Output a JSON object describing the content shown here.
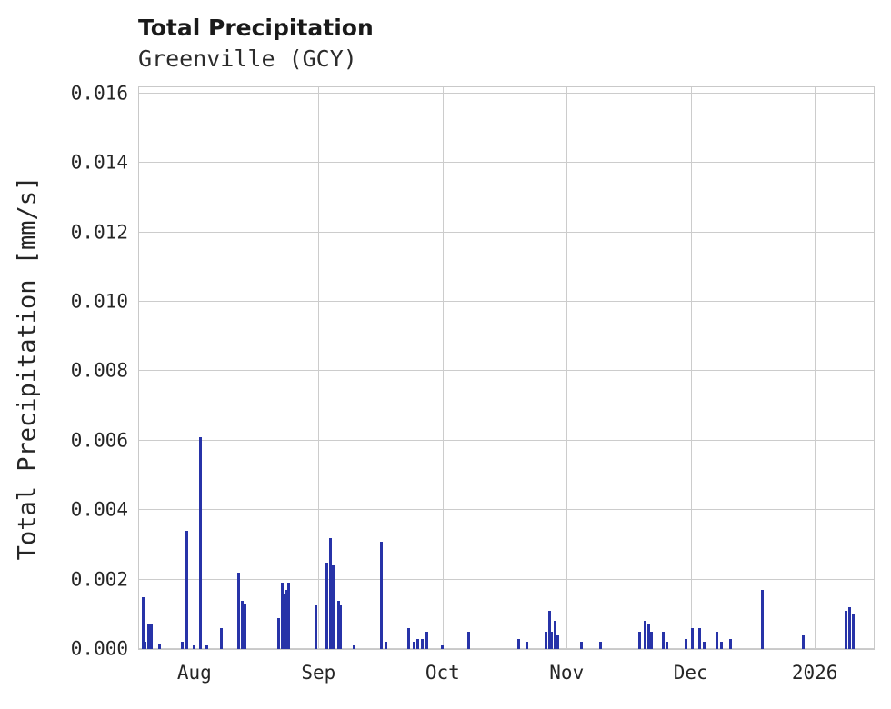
{
  "colors": {
    "bar": "#2733a8",
    "grid": "#cccccc",
    "border": "#c9c9c9",
    "text": "#262626"
  },
  "chart_data": {
    "type": "bar",
    "title": "Total Precipitation",
    "subtitle": "Greenville (GCY)",
    "xlabel": "",
    "ylabel": "Total Precipitation [mm/s]",
    "grid": true,
    "legend": false,
    "ylim": [
      0,
      0.01618
    ],
    "xlim": [
      -0.446,
      5.475
    ],
    "yticks": [
      {
        "v": 0.0,
        "label": "0.000"
      },
      {
        "v": 0.002,
        "label": "0.002"
      },
      {
        "v": 0.004,
        "label": "0.004"
      },
      {
        "v": 0.006,
        "label": "0.006"
      },
      {
        "v": 0.008,
        "label": "0.008"
      },
      {
        "v": 0.01,
        "label": "0.010"
      },
      {
        "v": 0.012,
        "label": "0.012"
      },
      {
        "v": 0.014,
        "label": "0.014"
      },
      {
        "v": 0.016,
        "label": "0.016"
      }
    ],
    "xticks": [
      {
        "u": 0,
        "label": "Aug"
      },
      {
        "u": 1,
        "label": "Sep"
      },
      {
        "u": 2,
        "label": "Oct"
      },
      {
        "u": 3,
        "label": "Nov"
      },
      {
        "u": 4,
        "label": "Dec"
      },
      {
        "u": 5,
        "label": "2026"
      }
    ],
    "x_axis_note": "u = months after Aug 1; axis spans ~Jul 18 to ~Jan 15 (2026)",
    "points": [
      {
        "u": -0.41,
        "v": 0.0015
      },
      {
        "u": -0.395,
        "v": 0.0002
      },
      {
        "u": -0.37,
        "v": 0.0007
      },
      {
        "u": -0.35,
        "v": 0.0007
      },
      {
        "u": -0.28,
        "v": 0.00015
      },
      {
        "u": -0.1,
        "v": 0.0002
      },
      {
        "u": -0.06,
        "v": 0.0034
      },
      {
        "u": 0.0,
        "v": 0.0001
      },
      {
        "u": 0.05,
        "v": 0.0061
      },
      {
        "u": 0.1,
        "v": 0.0001
      },
      {
        "u": 0.22,
        "v": 0.0006
      },
      {
        "u": 0.36,
        "v": 0.0022
      },
      {
        "u": 0.385,
        "v": 0.0014
      },
      {
        "u": 0.41,
        "v": 0.0013
      },
      {
        "u": 0.68,
        "v": 0.0009
      },
      {
        "u": 0.71,
        "v": 0.0019
      },
      {
        "u": 0.73,
        "v": 0.0016
      },
      {
        "u": 0.745,
        "v": 0.0017
      },
      {
        "u": 0.76,
        "v": 0.0019
      },
      {
        "u": 0.98,
        "v": 0.00125
      },
      {
        "u": 1.07,
        "v": 0.0025
      },
      {
        "u": 1.1,
        "v": 0.0032
      },
      {
        "u": 1.12,
        "v": 0.0024
      },
      {
        "u": 1.16,
        "v": 0.0014
      },
      {
        "u": 1.18,
        "v": 0.00125
      },
      {
        "u": 1.29,
        "v": 0.0001
      },
      {
        "u": 1.51,
        "v": 0.0031
      },
      {
        "u": 1.54,
        "v": 0.0002
      },
      {
        "u": 1.73,
        "v": 0.0006
      },
      {
        "u": 1.77,
        "v": 0.0002
      },
      {
        "u": 1.8,
        "v": 0.0003
      },
      {
        "u": 1.84,
        "v": 0.0003
      },
      {
        "u": 1.87,
        "v": 0.0005
      },
      {
        "u": 2.0,
        "v": 0.0001
      },
      {
        "u": 2.21,
        "v": 0.0005
      },
      {
        "u": 2.61,
        "v": 0.0003
      },
      {
        "u": 2.68,
        "v": 0.0002
      },
      {
        "u": 2.83,
        "v": 0.0005
      },
      {
        "u": 2.86,
        "v": 0.0011
      },
      {
        "u": 2.88,
        "v": 0.0005
      },
      {
        "u": 2.91,
        "v": 0.0008
      },
      {
        "u": 2.93,
        "v": 0.0004
      },
      {
        "u": 3.12,
        "v": 0.0002
      },
      {
        "u": 3.27,
        "v": 0.0002
      },
      {
        "u": 3.59,
        "v": 0.0005
      },
      {
        "u": 3.63,
        "v": 0.0008
      },
      {
        "u": 3.66,
        "v": 0.0007
      },
      {
        "u": 3.68,
        "v": 0.0005
      },
      {
        "u": 3.78,
        "v": 0.0005
      },
      {
        "u": 3.81,
        "v": 0.0002
      },
      {
        "u": 3.96,
        "v": 0.0003
      },
      {
        "u": 4.01,
        "v": 0.0006
      },
      {
        "u": 4.07,
        "v": 0.0006
      },
      {
        "u": 4.11,
        "v": 0.0002
      },
      {
        "u": 4.21,
        "v": 0.0005
      },
      {
        "u": 4.25,
        "v": 0.0002
      },
      {
        "u": 4.32,
        "v": 0.0003
      },
      {
        "u": 4.58,
        "v": 0.0017
      },
      {
        "u": 4.91,
        "v": 0.0004
      },
      {
        "u": 5.25,
        "v": 0.0011
      },
      {
        "u": 5.28,
        "v": 0.0012
      },
      {
        "u": 5.31,
        "v": 0.001
      }
    ]
  }
}
